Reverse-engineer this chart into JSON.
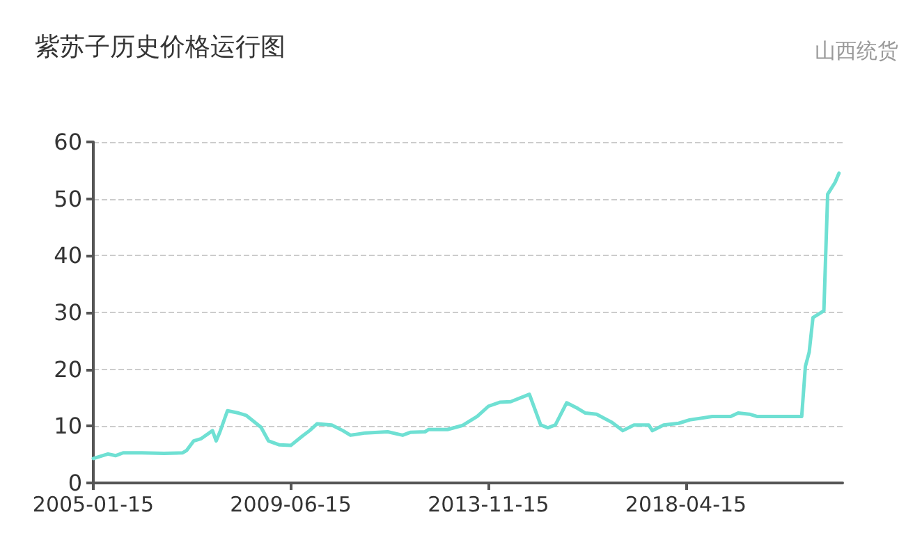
{
  "chart_data": {
    "type": "line",
    "title": "紫苏子历史价格运行图",
    "subtitle": "山西统货",
    "x": [
      "2005-01-15",
      "2005-05",
      "2005-07",
      "2005-09",
      "2006-02",
      "2006-08",
      "2007-01",
      "2007-02",
      "2007-04",
      "2007-06",
      "2007-09",
      "2007-10",
      "2007-11",
      "2008-01",
      "2008-04",
      "2008-06",
      "2008-10",
      "2008-12",
      "2009-03",
      "2009-06",
      "2009-09",
      "2009-11",
      "2010-01",
      "2010-05",
      "2010-08",
      "2010-10",
      "2011-02",
      "2011-08",
      "2011-12",
      "2012-02",
      "2012-06",
      "2012-07",
      "2012-12",
      "2013-04",
      "2013-08",
      "2013-11",
      "2014-02",
      "2014-05",
      "2014-10",
      "2015-01",
      "2015-03",
      "2015-05",
      "2015-08",
      "2015-11",
      "2016-01",
      "2016-04",
      "2016-08",
      "2016-11",
      "2017-02",
      "2017-06",
      "2017-07",
      "2017-10",
      "2018-02",
      "2018-05",
      "2018-11",
      "2019-04",
      "2019-06",
      "2019-09",
      "2019-11",
      "2020-11",
      "2020-12",
      "2021-01",
      "2021-02",
      "2021-05",
      "2021-06",
      "2021-08",
      "2021-09"
    ],
    "series": [
      {
        "color": "#6fe0d3",
        "values": [
          4.3,
          5.1,
          4.8,
          5.3,
          5.3,
          5.2,
          5.3,
          5.7,
          7.4,
          7.8,
          9.2,
          7.4,
          9.0,
          12.7,
          12.3,
          11.9,
          9.8,
          7.4,
          6.7,
          6.6,
          8.2,
          9.2,
          10.4,
          10.2,
          9.2,
          8.4,
          8.8,
          9.0,
          8.4,
          8.9,
          9.0,
          9.4,
          9.4,
          10.1,
          11.7,
          13.5,
          14.2,
          14.3,
          15.6,
          10.2,
          9.7,
          10.2,
          14.1,
          13.1,
          12.3,
          12.1,
          10.7,
          9.2,
          10.2,
          10.2,
          9.2,
          10.2,
          10.5,
          11.1,
          11.7,
          11.7,
          12.3,
          12.1,
          11.7,
          11.7,
          20.5,
          23.0,
          29.1,
          30.3,
          50.8,
          52.9,
          54.5
        ]
      }
    ],
    "xlim": [
      "2005-01-15",
      "2021-10-15"
    ],
    "xticks": [
      "2005-01-15",
      "2009-06-15",
      "2013-11-15",
      "2018-04-15"
    ],
    "ylim": [
      0,
      60
    ],
    "yticks": [
      0,
      10,
      20,
      30,
      40,
      50,
      60
    ],
    "grid": "y"
  }
}
